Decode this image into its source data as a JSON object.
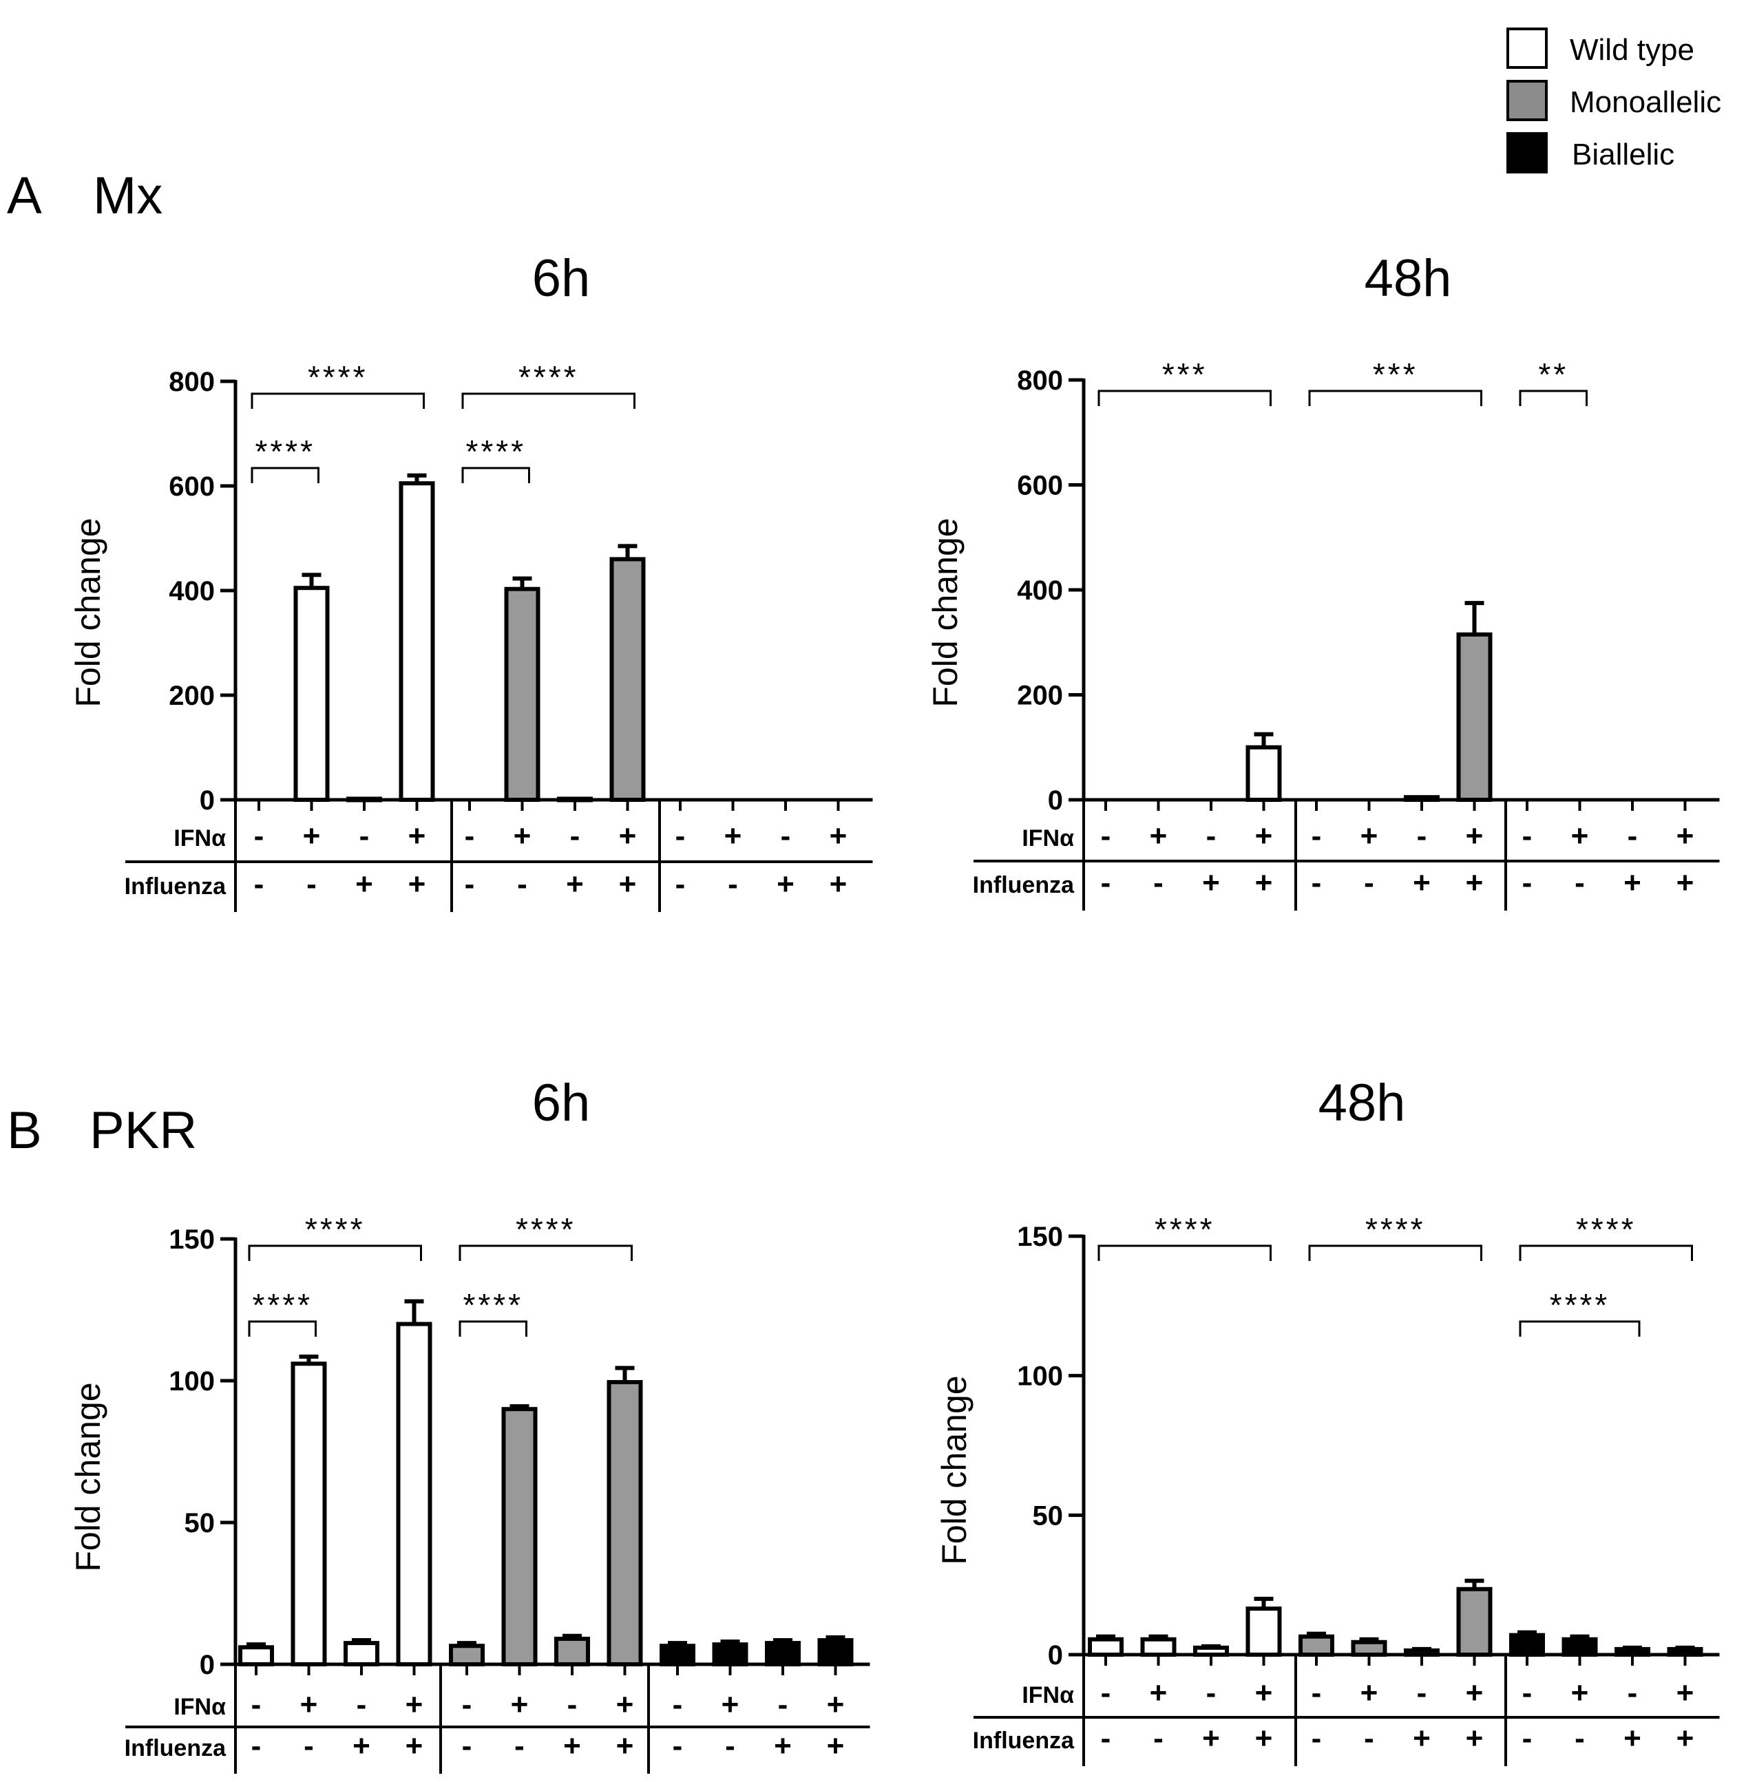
{
  "legend": {
    "items": [
      {
        "label": "Wild type",
        "fill": "#ffffff"
      },
      {
        "label": "Monoallelic",
        "fill": "#8c8c8c"
      },
      {
        "label": "Biallelic",
        "fill": "#000000"
      }
    ]
  },
  "rows": [
    {
      "letter": "A",
      "gene": "Mx"
    },
    {
      "letter": "B",
      "gene": "PKR"
    }
  ],
  "colors": {
    "wild_type": "#ffffff",
    "monoallelic": "#999999",
    "biallelic": "#000000",
    "stroke": "#000000"
  },
  "row_labels": {
    "ifna": "IFNα",
    "influenza": "Influenza"
  },
  "chart_data": [
    {
      "id": "mx-6h",
      "type": "bar",
      "title": "6h",
      "ylabel": "Fold change",
      "ylim": [
        0,
        800
      ],
      "yticks": [
        0,
        200,
        400,
        600,
        800
      ],
      "genotypes": [
        "Wild type",
        "Monoallelic",
        "Biallelic"
      ],
      "ifna": [
        "-",
        "+",
        "-",
        "+",
        "-",
        "+",
        "-",
        "+",
        "-",
        "+",
        "-",
        "+"
      ],
      "influenza": [
        "-",
        "-",
        "+",
        "+",
        "-",
        "-",
        "+",
        "+",
        "-",
        "-",
        "+",
        "+"
      ],
      "values": [
        0,
        405,
        2,
        605,
        0,
        403,
        2,
        460,
        0,
        0,
        0,
        0
      ],
      "errors": [
        0,
        25,
        0,
        15,
        0,
        20,
        0,
        25,
        0,
        0,
        0,
        0
      ],
      "significance": [
        {
          "from": 0,
          "to": 3,
          "label": "****",
          "level": 0
        },
        {
          "from": 4,
          "to": 7,
          "label": "****",
          "level": 0
        },
        {
          "from": 0,
          "to": 1,
          "label": "****",
          "level": 1
        },
        {
          "from": 4,
          "to": 5,
          "label": "****",
          "level": 1
        }
      ]
    },
    {
      "id": "mx-48h",
      "type": "bar",
      "title": "48h",
      "ylabel": "Fold change",
      "ylim": [
        0,
        800
      ],
      "yticks": [
        0,
        200,
        400,
        600,
        800
      ],
      "genotypes": [
        "Wild type",
        "Monoallelic",
        "Biallelic"
      ],
      "ifna": [
        "-",
        "+",
        "-",
        "+",
        "-",
        "+",
        "-",
        "+",
        "-",
        "+",
        "-",
        "+"
      ],
      "influenza": [
        "-",
        "-",
        "+",
        "+",
        "-",
        "-",
        "+",
        "+",
        "-",
        "-",
        "+",
        "+"
      ],
      "values": [
        0,
        0,
        0,
        100,
        0,
        0,
        5,
        315,
        0,
        0,
        0,
        0
      ],
      "errors": [
        0,
        0,
        0,
        25,
        0,
        0,
        0,
        60,
        0,
        0,
        0,
        0
      ],
      "significance": [
        {
          "from": 0,
          "to": 3,
          "label": "***",
          "level": 0
        },
        {
          "from": 4,
          "to": 7,
          "label": "***",
          "level": 0
        },
        {
          "from": 8,
          "to": 9,
          "label": "**",
          "level": 0
        }
      ]
    },
    {
      "id": "pkr-6h",
      "type": "bar",
      "title": "6h",
      "ylabel": "Fold change",
      "ylim": [
        0,
        150
      ],
      "yticks": [
        0,
        50,
        100,
        150
      ],
      "genotypes": [
        "Wild type",
        "Monoallelic",
        "Biallelic"
      ],
      "ifna": [
        "-",
        "+",
        "-",
        "+",
        "-",
        "+",
        "-",
        "+",
        "-",
        "+",
        "-",
        "+"
      ],
      "influenza": [
        "-",
        "-",
        "+",
        "+",
        "-",
        "-",
        "+",
        "+",
        "-",
        "-",
        "+",
        "+"
      ],
      "values": [
        6,
        106,
        7.5,
        120,
        6.5,
        90,
        9,
        99.5,
        6.5,
        7,
        7.5,
        8.5
      ],
      "errors": [
        1,
        2.5,
        1,
        8,
        1,
        1,
        1,
        5,
        1,
        1,
        1,
        1
      ],
      "significance": [
        {
          "from": 0,
          "to": 3,
          "label": "****",
          "level": 0
        },
        {
          "from": 4,
          "to": 7,
          "label": "****",
          "level": 0
        },
        {
          "from": 0,
          "to": 1,
          "label": "****",
          "level": 1
        },
        {
          "from": 4,
          "to": 5,
          "label": "****",
          "level": 1
        }
      ]
    },
    {
      "id": "pkr-48h",
      "type": "bar",
      "title": "48h",
      "ylabel": "Fold change",
      "ylim": [
        0,
        150
      ],
      "yticks": [
        0,
        50,
        100,
        150
      ],
      "genotypes": [
        "Wild type",
        "Monoallelic",
        "Biallelic"
      ],
      "ifna": [
        "-",
        "+",
        "-",
        "+",
        "-",
        "+",
        "-",
        "+",
        "-",
        "+",
        "-",
        "+"
      ],
      "influenza": [
        "-",
        "-",
        "+",
        "+",
        "-",
        "-",
        "+",
        "+",
        "-",
        "-",
        "+",
        "+"
      ],
      "values": [
        5.5,
        5.5,
        2.5,
        16.5,
        6.5,
        4.5,
        1.5,
        23.5,
        7,
        5.5,
        2,
        2
      ],
      "errors": [
        1,
        1,
        0.5,
        3.5,
        1,
        1,
        0.5,
        3,
        1,
        1,
        0.5,
        0.5
      ],
      "significance": [
        {
          "from": 0,
          "to": 3,
          "label": "****",
          "level": 0
        },
        {
          "from": 4,
          "to": 7,
          "label": "****",
          "level": 0
        },
        {
          "from": 8,
          "to": 11,
          "label": "****",
          "level": 0
        },
        {
          "from": 8,
          "to": 10,
          "label": "****",
          "level": 1
        }
      ]
    }
  ]
}
